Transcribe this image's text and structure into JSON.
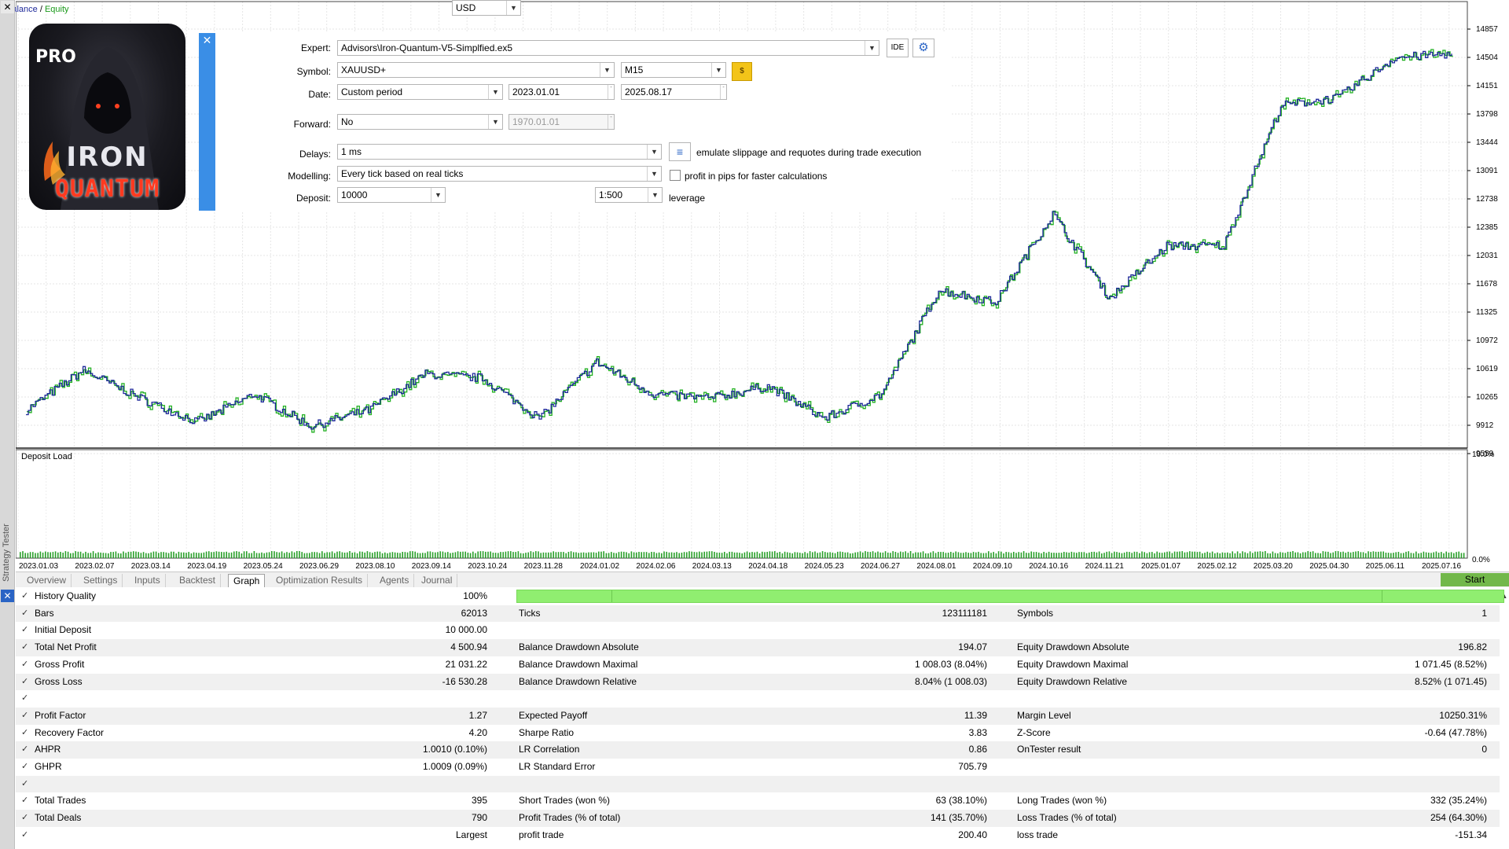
{
  "chart": {
    "title_balance": "Balance",
    "title_sep": " / ",
    "title_equity": "Equity",
    "price_labels": [
      "14857",
      "14504",
      "14151",
      "13798",
      "13444",
      "13091",
      "12738",
      "12385",
      "12031",
      "11678",
      "11325",
      "10972",
      "10619",
      "10265",
      "9912",
      "9559"
    ],
    "date_labels": [
      "2023.01.03",
      "2023.02.07",
      "2023.03.14",
      "2023.04.19",
      "2023.05.24",
      "2023.06.29",
      "2023.08.10",
      "2023.09.14",
      "2023.10.24",
      "2023.11.28",
      "2024.01.02",
      "2024.02.06",
      "2024.03.13",
      "2024.04.18",
      "2024.05.23",
      "2024.06.27",
      "2024.08.01",
      "2024.09.10",
      "2024.10.16",
      "2024.11.21",
      "2025.01.07",
      "2025.02.12",
      "2025.03.20",
      "2025.04.30",
      "2025.06.11",
      "2025.07.16"
    ],
    "deposit_title": "Deposit Load",
    "deposit_max": "10.0%",
    "deposit_min": "0.0%",
    "balance_color": "#1f2a9a",
    "equity_color": "#22b022"
  },
  "chart_data": {
    "type": "line",
    "ylim": [
      9559,
      14857
    ],
    "x": [
      "2023.01.03",
      "2023.02.07",
      "2023.03.14",
      "2023.04.19",
      "2023.05.24",
      "2023.06.29",
      "2023.08.10",
      "2023.09.14",
      "2023.10.24",
      "2023.11.28",
      "2024.01.02",
      "2024.02.06",
      "2024.03.13",
      "2024.04.18",
      "2024.05.23",
      "2024.06.27",
      "2024.08.01",
      "2024.09.10",
      "2024.10.16",
      "2024.11.21",
      "2025.01.07",
      "2025.02.12",
      "2025.03.20",
      "2025.04.30",
      "2025.06.11",
      "2025.07.16"
    ],
    "series": [
      {
        "values": [
          10100,
          10600,
          10250,
          9950,
          10300,
          9900,
          10100,
          10550,
          10500,
          10000,
          10700,
          10300,
          10250,
          10400,
          10000,
          10300,
          11600,
          11450,
          12550,
          11500,
          12150,
          12150,
          13900,
          14000,
          14500,
          14550
        ]
      }
    ]
  },
  "logo": {
    "pro": "PRO",
    "iron": "IRON",
    "quantum": "QUANTUM"
  },
  "settings": {
    "close": "✕",
    "expert_label": "Expert:",
    "expert_value": "Advisors\\Iron-Quantum-V5-Simplfied.ex5",
    "ide_label": "IDE",
    "gear_glyph": "⚙",
    "symbol_label": "Symbol:",
    "symbol_value": "XAUUSD+",
    "timeframe_value": "M15",
    "dollar_glyph": "$",
    "date_label": "Date:",
    "date_mode": "Custom period",
    "date_from": "2023.01.01",
    "date_to": "2025.08.17",
    "forward_label": "Forward:",
    "forward_value": "No",
    "forward_date": "1970.01.01",
    "delays_label": "Delays:",
    "delays_value": "1 ms",
    "slippage_text": "emulate slippage and requotes during trade execution",
    "modelling_label": "Modelling:",
    "modelling_value": "Every tick based on real ticks",
    "pips_text": "profit in pips for faster calculations",
    "deposit_label": "Deposit:",
    "deposit_value": "10000",
    "currency_value": "USD",
    "leverage_value": "1:500",
    "leverage_text": "leverage"
  },
  "side": {
    "close_top": "✕",
    "close_bottom": "✕",
    "vertical_label": "Strategy Tester"
  },
  "tabs": [
    "Overview",
    "Settings",
    "Inputs",
    "Backtest",
    "Graph",
    "Optimization Results",
    "Agents",
    "Journal"
  ],
  "start_label": "Start",
  "results": {
    "check": "✓",
    "scroll_up": "▲",
    "rows": [
      {
        "c1l": "History Quality",
        "c1v": "100%",
        "c2l": "",
        "c2v": "",
        "c3l": "",
        "c3v": ""
      },
      {
        "c1l": "Bars",
        "c1v": "62013",
        "c2l": "Ticks",
        "c2v": "123111181",
        "c3l": "Symbols",
        "c3v": "1"
      },
      {
        "c1l": "Initial Deposit",
        "c1v": "10 000.00",
        "c2l": "",
        "c2v": "",
        "c3l": "",
        "c3v": ""
      },
      {
        "c1l": "Total Net Profit",
        "c1v": "4 500.94",
        "c2l": "Balance Drawdown Absolute",
        "c2v": "194.07",
        "c3l": "Equity Drawdown Absolute",
        "c3v": "196.82"
      },
      {
        "c1l": "Gross Profit",
        "c1v": "21 031.22",
        "c2l": "Balance Drawdown Maximal",
        "c2v": "1 008.03 (8.04%)",
        "c3l": "Equity Drawdown Maximal",
        "c3v": "1 071.45 (8.52%)"
      },
      {
        "c1l": "Gross Loss",
        "c1v": "-16 530.28",
        "c2l": "Balance Drawdown Relative",
        "c2v": "8.04% (1 008.03)",
        "c3l": "Equity Drawdown Relative",
        "c3v": "8.52% (1 071.45)"
      },
      {
        "c1l": "",
        "c1v": "",
        "c2l": "",
        "c2v": "",
        "c3l": "",
        "c3v": ""
      },
      {
        "c1l": "Profit Factor",
        "c1v": "1.27",
        "c2l": "Expected Payoff",
        "c2v": "11.39",
        "c3l": "Margin Level",
        "c3v": "10250.31%"
      },
      {
        "c1l": "Recovery Factor",
        "c1v": "4.20",
        "c2l": "Sharpe Ratio",
        "c2v": "3.83",
        "c3l": "Z-Score",
        "c3v": "-0.64 (47.78%)"
      },
      {
        "c1l": "AHPR",
        "c1v": "1.0010 (0.10%)",
        "c2l": "LR Correlation",
        "c2v": "0.86",
        "c3l": "OnTester result",
        "c3v": "0"
      },
      {
        "c1l": "GHPR",
        "c1v": "1.0009 (0.09%)",
        "c2l": "LR Standard Error",
        "c2v": "705.79",
        "c3l": "",
        "c3v": ""
      },
      {
        "c1l": "",
        "c1v": "",
        "c2l": "",
        "c2v": "",
        "c3l": "",
        "c3v": ""
      },
      {
        "c1l": "Total Trades",
        "c1v": "395",
        "c2l": "Short Trades (won %)",
        "c2v": "63 (38.10%)",
        "c3l": "Long Trades (won %)",
        "c3v": "332 (35.24%)"
      },
      {
        "c1l": "Total Deals",
        "c1v": "790",
        "c2l": "Profit Trades (% of total)",
        "c2v": "141 (35.70%)",
        "c3l": "Loss Trades (% of total)",
        "c3v": "254 (64.30%)"
      },
      {
        "c1l": "",
        "c1v": "Largest",
        "c2l": "profit trade",
        "c2v": "200.40",
        "c3l": "loss trade",
        "c3v": "-151.34"
      }
    ]
  }
}
